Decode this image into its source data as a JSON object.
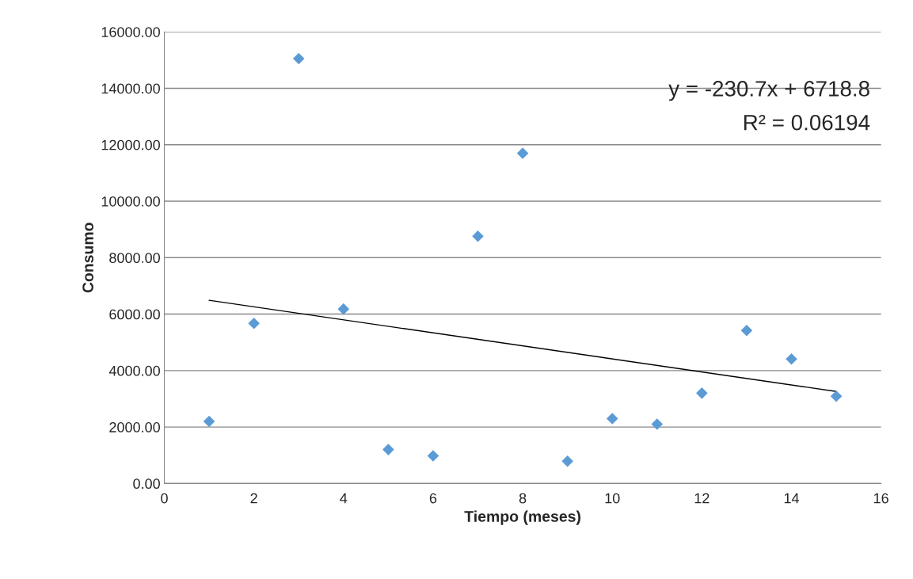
{
  "chart_data": {
    "type": "scatter",
    "xlabel": "Tiempo (meses)",
    "ylabel": "Consumo",
    "x": [
      1,
      2,
      3,
      4,
      5,
      6,
      7,
      8,
      9,
      10,
      11,
      12,
      13,
      14,
      15
    ],
    "series": [
      {
        "color": "#5b9bd5",
        "marker": "diamond",
        "values": [
          2200,
          5670,
          15050,
          6180,
          1200,
          980,
          8760,
          11700,
          790,
          2300,
          2100,
          3200,
          5420,
          4410,
          3090
        ]
      },
      {
        "type": "line",
        "color": "#000000",
        "marker": "none",
        "x": [
          1,
          15
        ],
        "values": [
          6490,
          3260
        ]
      }
    ],
    "xlim": [
      0,
      16
    ],
    "xticks": [
      0,
      2,
      4,
      6,
      8,
      10,
      12,
      14,
      16
    ],
    "ylim": [
      0,
      16000
    ],
    "yticks": [
      {
        "value": 0,
        "label": "0.00"
      },
      {
        "value": 2000,
        "label": "2000.00"
      },
      {
        "value": 4000,
        "label": "4000.00"
      },
      {
        "value": 6000,
        "label": "6000.00"
      },
      {
        "value": 8000,
        "label": "8000.00"
      },
      {
        "value": 10000,
        "label": "10000.00"
      },
      {
        "value": 12000,
        "label": "12000.00"
      },
      {
        "value": 14000,
        "label": "14000.00"
      },
      {
        "value": 16000,
        "label": "16000.00"
      }
    ],
    "grid": "y",
    "annotations": [
      "y = -230.7x + 6718.8",
      "R² = 0.06194"
    ]
  }
}
